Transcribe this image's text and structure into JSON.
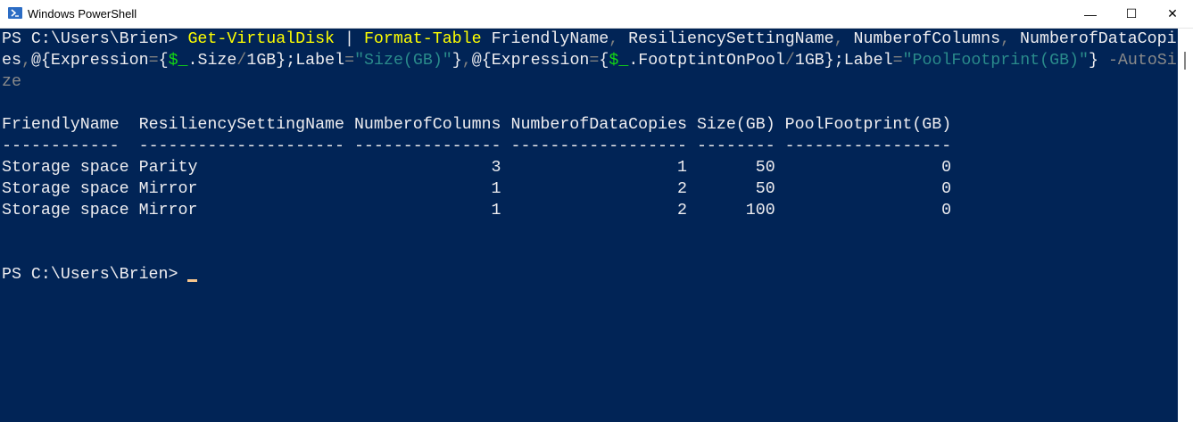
{
  "window": {
    "title": "Windows PowerShell",
    "minimize": "—",
    "maximize": "☐",
    "close": "✕",
    "icon": "powershell-icon"
  },
  "colors": {
    "background": "#012456",
    "command": "#ffff00",
    "string": "#2a8b8b",
    "variable": "#13d813",
    "operator": "#808080",
    "text": "#eeedf0"
  },
  "command_lines": [
    [
      {
        "t": "PS C:\\Users\\Brien> ",
        "c": "default"
      },
      {
        "t": "Get-VirtualDisk",
        "c": "cmd"
      },
      {
        "t": " | ",
        "c": "default"
      },
      {
        "t": "Format-Table",
        "c": "cmd"
      },
      {
        "t": " FriendlyName",
        "c": "default"
      },
      {
        "t": ",",
        "c": "op"
      },
      {
        "t": " ResiliencySettingName",
        "c": "default"
      },
      {
        "t": ",",
        "c": "op"
      },
      {
        "t": " NumberofColumns",
        "c": "default"
      },
      {
        "t": ",",
        "c": "op"
      },
      {
        "t": " NumberofDataCopi",
        "c": "default"
      }
    ],
    [
      {
        "t": "es",
        "c": "default"
      },
      {
        "t": ",",
        "c": "op"
      },
      {
        "t": "@{Expression",
        "c": "default"
      },
      {
        "t": "=",
        "c": "op"
      },
      {
        "t": "{",
        "c": "default"
      },
      {
        "t": "$_",
        "c": "var"
      },
      {
        "t": ".Size",
        "c": "default"
      },
      {
        "t": "/",
        "c": "op"
      },
      {
        "t": "1GB};Label",
        "c": "default"
      },
      {
        "t": "=",
        "c": "op"
      },
      {
        "t": "\"Size(GB)\"",
        "c": "str"
      },
      {
        "t": "}",
        "c": "default"
      },
      {
        "t": ",",
        "c": "op"
      },
      {
        "t": "@{Expression",
        "c": "default"
      },
      {
        "t": "=",
        "c": "op"
      },
      {
        "t": "{",
        "c": "default"
      },
      {
        "t": "$_",
        "c": "var"
      },
      {
        "t": ".FootptintOnPool",
        "c": "default"
      },
      {
        "t": "/",
        "c": "op"
      },
      {
        "t": "1GB};Label",
        "c": "default"
      },
      {
        "t": "=",
        "c": "op"
      },
      {
        "t": "\"PoolFootprint(GB)\"",
        "c": "str"
      },
      {
        "t": "}",
        "c": "default"
      },
      {
        "t": " -AutoSi",
        "c": "param"
      }
    ],
    [
      {
        "t": "ze",
        "c": "param"
      }
    ]
  ],
  "table": {
    "columns": [
      {
        "header": "FriendlyName",
        "dashes": "------------",
        "width": 13,
        "align": "left"
      },
      {
        "header": "ResiliencySettingName",
        "dashes": "---------------------",
        "width": 21,
        "align": "left"
      },
      {
        "header": "NumberofColumns",
        "dashes": "---------------",
        "width": 15,
        "align": "right"
      },
      {
        "header": "NumberofDataCopies",
        "dashes": "------------------",
        "width": 18,
        "align": "right"
      },
      {
        "header": "Size(GB)",
        "dashes": "--------",
        "width": 8,
        "align": "right"
      },
      {
        "header": "PoolFootprint(GB)",
        "dashes": "-----------------",
        "width": 17,
        "align": "right"
      }
    ],
    "rows": [
      [
        "Storage space",
        "Parity",
        "3",
        "1",
        "50",
        "0"
      ],
      [
        "Storage space",
        "Mirror",
        "1",
        "2",
        "50",
        "0"
      ],
      [
        "Storage space",
        "Mirror",
        "1",
        "2",
        "100",
        "0"
      ]
    ]
  },
  "prompt": "PS C:\\Users\\Brien> "
}
